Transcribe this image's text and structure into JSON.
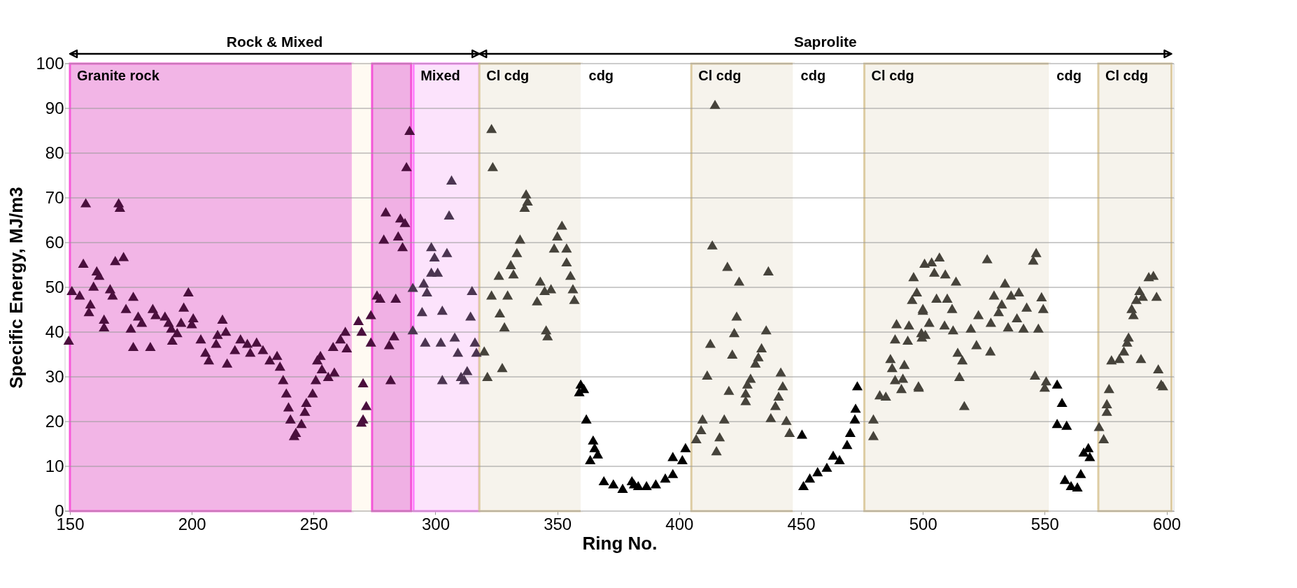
{
  "chart_data": {
    "type": "scatter",
    "xlabel": "Ring No.",
    "ylabel": "Specific Energy, MJ/m3",
    "xlim": [
      148,
      603
    ],
    "xticks": [
      150,
      200,
      250,
      300,
      350,
      400,
      450,
      500,
      550,
      600
    ],
    "ylim": [
      0,
      100
    ],
    "yticks": [
      0,
      10,
      20,
      30,
      40,
      50,
      60,
      70,
      80,
      90,
      100
    ],
    "grid": "y",
    "marker": "triangle",
    "legend": false,
    "bands": [
      {
        "axis": "x",
        "from": 150,
        "to": 266,
        "label": "Granite rock",
        "color": "#f2b5e6"
      },
      {
        "axis": "x",
        "from": 266,
        "to": 274,
        "label": null,
        "color": "#fffaf2"
      },
      {
        "axis": "x",
        "from": 274,
        "to": 290,
        "label": null,
        "color": "#f0b0e4"
      },
      {
        "axis": "x",
        "from": 291,
        "to": 318,
        "label": "Mixed",
        "color": "#fce3fc"
      },
      {
        "axis": "x",
        "from": 318,
        "to": 360,
        "label": "Cl cdg",
        "color": "#f6f3ec"
      },
      {
        "axis": "x",
        "from": 360,
        "to": 405,
        "label": "cdg",
        "color": "#ffffff"
      },
      {
        "axis": "x",
        "from": 405,
        "to": 447,
        "label": "Cl cdg",
        "color": "#f6f3ec"
      },
      {
        "axis": "x",
        "from": 447,
        "to": 476,
        "label": "cdg",
        "color": "#ffffff"
      },
      {
        "axis": "x",
        "from": 476,
        "to": 552,
        "label": "Cl cdg",
        "color": "#f6f3ec"
      },
      {
        "axis": "x",
        "from": 552,
        "to": 572,
        "label": "cdg",
        "color": "#ffffff"
      },
      {
        "axis": "x",
        "from": 572,
        "to": 602,
        "label": "Cl cdg",
        "color": "#f6f3ec"
      }
    ],
    "annotations": [
      "Rock & Mixed",
      "Saprolite"
    ],
    "series": [
      {
        "color": "#4a0f3d",
        "x": [
          149.5,
          150.8,
          154,
          156.5,
          170,
          170.5,
          155.5,
          168.6,
          172,
          161,
          162,
          159.7,
          166.5,
          167.5,
          158.4,
          157.8,
          176,
          173,
          164,
          164,
          178,
          175,
          179.5,
          176,
          183,
          184,
          185.2,
          189,
          190.5,
          191.6,
          198.6,
          196.7,
          195.6,
          194,
          192,
          200.6,
          200,
          203.7,
          205.6,
          207,
          212.6,
          210.6,
          214,
          210,
          214.5,
          220,
          217.7,
          222.8,
          226.6,
          229.2,
          224,
          232,
          235,
          236.2,
          237.5,
          238.8,
          239.7,
          240.5,
          242.7,
          242,
          245,
          246.4,
          247,
          249.6,
          250.9,
          252.8,
          251.5,
          253.4,
          258.5,
          256,
          258,
          261,
          263,
          263.6,
          268.4,
          269.7,
          270.3,
          271.6,
          270.3,
          269.6,
          273.5,
          273.5,
          277.3,
          283.7,
          276,
          279.6,
          285.6,
          287.5,
          278.8,
          284.7,
          286.5,
          289.4,
          288.1,
          283,
          281,
          281.6
        ],
        "values": [
          38.2,
          49.3,
          48.3,
          68.9,
          68.9,
          67.9,
          55.4,
          56,
          56.9,
          53.7,
          52.7,
          50.3,
          49.7,
          48.3,
          46.3,
          44.6,
          48,
          45.3,
          42.9,
          41.2,
          43.6,
          40.9,
          42.2,
          36.8,
          36.8,
          45.3,
          43.9,
          43.6,
          42.2,
          40.9,
          49,
          45.6,
          42.2,
          39.9,
          38.2,
          43.2,
          41.9,
          38.5,
          35.5,
          33.8,
          42.9,
          39.5,
          40.2,
          37.5,
          33.1,
          38.5,
          36.1,
          37.5,
          37.8,
          36.1,
          35.5,
          33.8,
          34.8,
          32.4,
          29.4,
          26.4,
          23.3,
          20.6,
          17.6,
          16.9,
          19.6,
          22.3,
          24.3,
          26.4,
          29.4,
          34.8,
          33.8,
          31.8,
          31.1,
          30.1,
          36.8,
          38.5,
          40.2,
          36.5,
          42.6,
          40.2,
          28.7,
          23.6,
          20.6,
          19.9,
          37.8,
          43.9,
          47.6,
          47.6,
          48.3,
          66.9,
          65.5,
          64.5,
          60.8,
          61.5,
          59.1,
          85.1,
          77,
          39.2,
          37.2,
          29.4
        ]
      },
      {
        "color": "#4b3551",
        "x": [
          290.7,
          290.7,
          306.6,
          305.6,
          298.3,
          299.6,
          304.7,
          298.3,
          300.9,
          295.2,
          296.5,
          294.5,
          302.8,
          295.8,
          302.2,
          307.9,
          309.2,
          302.8,
          310.5,
          313,
          311.8,
          315,
          314.4,
          316.2,
          316.8
        ],
        "values": [
          40.5,
          50,
          74,
          66.2,
          59.1,
          56.8,
          57.8,
          53.4,
          53.4,
          51,
          49,
          44.6,
          44.9,
          37.8,
          37.8,
          38.9,
          35.5,
          29.4,
          30.1,
          31.4,
          29.4,
          49.3,
          43.6,
          37.8,
          35.5
        ]
      },
      {
        "color": "#46433b",
        "x": [
          321.3,
          320,
          323,
          323.5,
          337.2,
          337.8,
          336.6,
          334.7,
          333.4,
          330.9,
          332,
          326,
          323,
          329.6,
          326.4,
          328.3,
          327.4,
          351.9,
          350,
          348.7,
          353.8,
          353.8,
          355.4,
          356.4,
          357,
          343,
          341.7,
          347.4,
          344.8,
          345.4,
          346,
          414.7,
          413.6,
          419.8,
          424.6,
          436.6,
          423.6,
          422.6,
          435.7,
          412.8,
          421.8,
          433.8,
          432.5,
          431.3,
          411.5,
          429.3,
          428,
          420.4,
          427.3,
          427.3,
          441.7,
          442.5,
          440.8,
          439.5,
          437.6,
          444,
          445.3,
          409.6,
          418.5,
          409,
          407,
          416.6,
          415.3,
          479.7,
          479.7,
          482.3,
          484.8,
          488.6,
          492.4,
          486.7,
          487.4,
          491.8,
          491.2,
          498.2,
          488.6,
          493.8,
          489.2,
          494.3,
          495.6,
          497.5,
          496.2,
          500.7,
          500,
          499.4,
          498.3,
          501,
          499.6,
          502.6,
          500,
          505.6,
          510,
          512,
          508.9,
          512.4,
          503.6,
          506.8,
          504.7,
          509.2,
          513.6,
          526.4,
          514.3,
          516.2,
          522,
          527.7,
          515,
          517,
          519.7,
          522.8,
          527.9,
          533.7,
          529.2,
          532.4,
          536.2,
          539.4,
          542.6,
          531.1,
          535,
          541.3,
          538.6,
          547.4,
          548.7,
          549.4,
          546.5,
          545.3,
          546,
          550.6,
          550,
          572.3,
          574.2,
          575.5,
          575.5,
          576.4,
          577.4,
          580.6,
          582.5,
          583.8,
          584.4,
          589.5,
          596.6,
          598.5,
          597.8,
          586.4,
          585.7,
          587.6,
          590.2,
          595.9,
          588.9,
          592.7,
          594.6
        ],
        "values": [
          30.1,
          35.8,
          85.5,
          77,
          70.9,
          69.3,
          67.9,
          60.8,
          57.8,
          55.1,
          53,
          52.7,
          48.3,
          48.3,
          44.3,
          41.2,
          32.1,
          63.9,
          61.5,
          58.8,
          58.8,
          55.7,
          52.7,
          49.7,
          47.3,
          51.4,
          47,
          49.7,
          49.3,
          40.5,
          39.2,
          90.9,
          59.5,
          54.7,
          51.4,
          53.7,
          43.6,
          39.9,
          40.5,
          37.5,
          35.1,
          36.5,
          34.5,
          33.1,
          30.4,
          29.7,
          28.4,
          27,
          26.4,
          24.7,
          31.1,
          28,
          25.7,
          23.6,
          20.9,
          20.3,
          17.6,
          20.6,
          20.6,
          18.2,
          16.2,
          16.6,
          13.5,
          20.6,
          16.9,
          26,
          25.7,
          29.4,
          32.8,
          34.1,
          32.1,
          29.7,
          27.4,
          28,
          38.5,
          38.2,
          41.9,
          41.6,
          47.3,
          49,
          52.4,
          55.4,
          45.3,
          39.9,
          27.7,
          39.5,
          38.9,
          42.2,
          44.9,
          47.6,
          47.6,
          45.3,
          41.6,
          40.5,
          55.7,
          56.8,
          53.4,
          53,
          51.4,
          56.4,
          35.5,
          33.8,
          37.2,
          35.8,
          30.1,
          23.6,
          40.9,
          43.9,
          42.2,
          51,
          48.3,
          46.3,
          48.3,
          49,
          45.6,
          44.6,
          41.2,
          40.9,
          43.2,
          40.9,
          47.9,
          45.3,
          57.8,
          56.1,
          30.4,
          29.1,
          27.7,
          18.9,
          16.2,
          22.3,
          24,
          27.4,
          33.8,
          34.1,
          35.8,
          37.8,
          38.9,
          34.1,
          31.8,
          28,
          28.4,
          43.9,
          45.3,
          47.3,
          48,
          48,
          49.3,
          52.4,
          52.7
        ]
      },
      {
        "color": "#000000",
        "x": [
          359.6,
          360.9,
          359,
          361.9,
          364.7,
          365.3,
          366.6,
          363.5,
          369.1,
          373,
          376.8,
          380.6,
          383.2,
          381.5,
          386.6,
          390.4,
          394.3,
          397.4,
          397.4,
          401.3,
          402.6,
          450.4,
          451,
          453.6,
          456.8,
          460.6,
          463.2,
          465.8,
          468.9,
          470.2,
          472.1,
          472.4,
          473.1,
          555.1,
          557.1,
          555.1,
          559,
          566,
          568.5,
          567.9,
          564.8,
          558.3,
          560.8,
          563.4
        ],
        "values": [
          28.4,
          27.4,
          26.7,
          20.6,
          15.9,
          14.2,
          12.8,
          11.5,
          6.8,
          6.1,
          5.1,
          6.8,
          5.7,
          6.1,
          5.7,
          6.1,
          7.4,
          8.4,
          12.2,
          11.5,
          14.2,
          17.2,
          5.7,
          7.4,
          8.8,
          9.8,
          12.5,
          11.5,
          14.9,
          17.6,
          20.6,
          23,
          28,
          28.4,
          24.3,
          19.6,
          19.2,
          13.2,
          12.2,
          14.2,
          8.4,
          7.1,
          5.7,
          5.4
        ]
      }
    ]
  }
}
